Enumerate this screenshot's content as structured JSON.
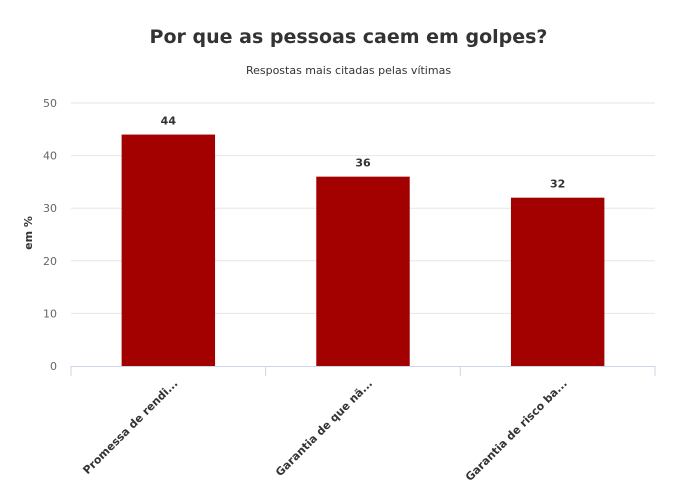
{
  "chart_data": {
    "type": "bar",
    "title": "Por que as pessoas caem em golpes?",
    "subtitle": "Respostas mais citadas pelas vítimas",
    "xlabel": "",
    "ylabel": "em %",
    "categories": [
      "Promessa de rendi...",
      "Garantia de que nã...",
      "Garantia de risco ba..."
    ],
    "values": [
      44,
      36,
      32
    ],
    "ylim": [
      0,
      50
    ],
    "yticks": [
      "0",
      "10",
      "20",
      "30",
      "40",
      "50"
    ],
    "grid": true,
    "legend": "none",
    "bar_color": "#a30000"
  }
}
